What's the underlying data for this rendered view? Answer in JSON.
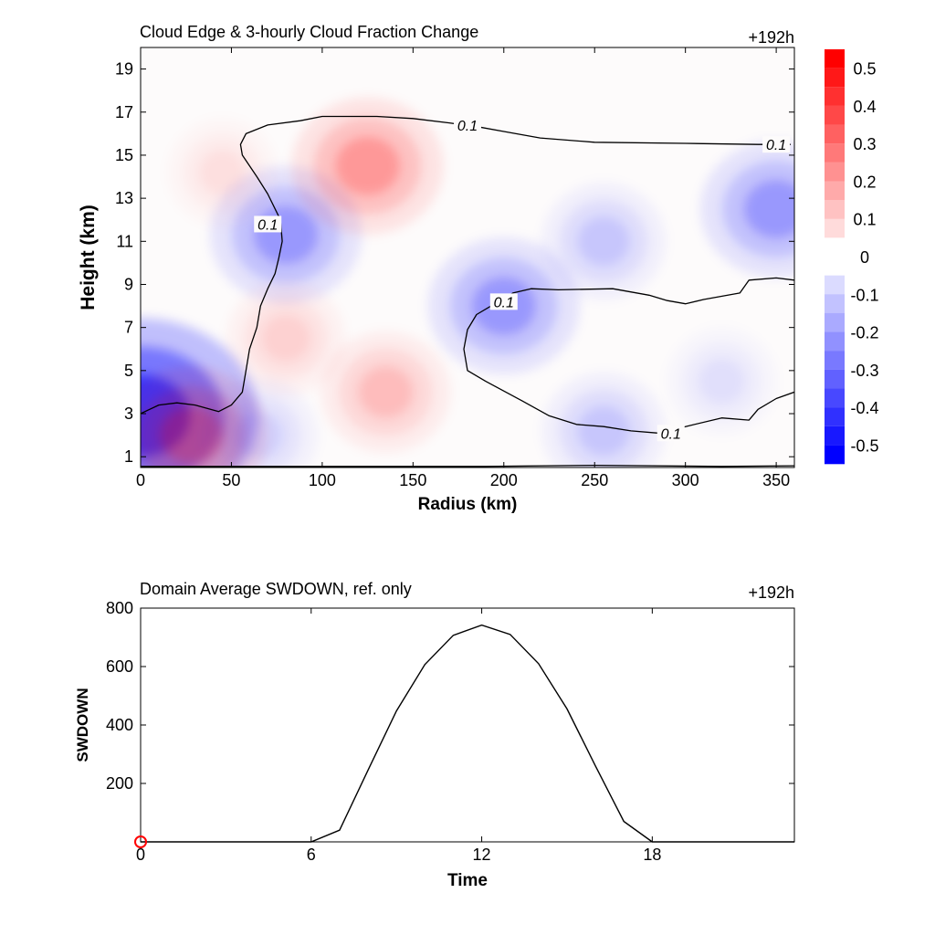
{
  "chart_data": [
    {
      "type": "heatmap",
      "title": "Cloud Edge & 3-hourly Cloud Fraction Change",
      "time_label": "+192h",
      "xlabel": "Radius (km)",
      "ylabel": "Height (km)",
      "xlim": [
        0,
        360
      ],
      "ylim": [
        0.5,
        20
      ],
      "xticks": [
        0,
        50,
        100,
        150,
        200,
        250,
        300,
        350
      ],
      "yticks": [
        1,
        3,
        5,
        7,
        9,
        11,
        13,
        15,
        17,
        19
      ],
      "colorbar": {
        "range": [
          -0.55,
          0.55
        ],
        "ticks": [
          0.5,
          0.4,
          0.3,
          0.2,
          0.1,
          0,
          -0.1,
          -0.2,
          -0.3,
          -0.4,
          -0.5
        ],
        "tick_labels": [
          "0.5",
          "0.4",
          "0.3",
          "0.2",
          "0.1",
          "0",
          "-0.1",
          "-0.2",
          "-0.3",
          "-0.4",
          "-0.5"
        ],
        "negative_color": "#0000ff",
        "positive_color": "#ff0000"
      },
      "fields": [
        {
          "r": 0,
          "z": 2.9,
          "value": -0.5
        },
        {
          "r": 28,
          "z": 2.0,
          "value": 0.2
        },
        {
          "r": 80,
          "z": 11.3,
          "value": -0.2
        },
        {
          "r": 125,
          "z": 14.5,
          "value": 0.2
        },
        {
          "r": 135,
          "z": 4.0,
          "value": 0.12
        },
        {
          "r": 80,
          "z": 6.5,
          "value": 0.08
        },
        {
          "r": 45,
          "z": 14.2,
          "value": 0.05
        },
        {
          "r": 200,
          "z": 8.0,
          "value": -0.2
        },
        {
          "r": 350,
          "z": 12.5,
          "value": -0.2
        },
        {
          "r": 255,
          "z": 2.2,
          "value": -0.1
        },
        {
          "r": 65,
          "z": 2.0,
          "value": -0.08
        },
        {
          "r": 320,
          "z": 4.5,
          "value": -0.05
        },
        {
          "r": 255,
          "z": 11.0,
          "value": -0.1
        }
      ],
      "contours": [
        {
          "label": "0.1",
          "label_positions": [
            [
              180,
              16.4
            ],
            [
              350,
              15.5
            ],
            [
              70,
              11.8
            ],
            [
              200,
              8.2
            ],
            [
              292,
              2.1
            ]
          ],
          "points": [
            [
              0,
              3.0
            ],
            [
              5,
              3.2
            ],
            [
              10,
              3.4
            ],
            [
              20,
              3.5
            ],
            [
              30,
              3.4
            ],
            [
              43,
              3.1
            ],
            [
              50,
              3.4
            ],
            [
              56,
              4.0
            ],
            [
              58,
              5.0
            ],
            [
              60,
              6.0
            ],
            [
              64,
              7.0
            ],
            [
              66,
              8.0
            ],
            [
              70,
              8.8
            ],
            [
              74,
              9.5
            ],
            [
              76,
              10.2
            ],
            [
              78,
              11.0
            ],
            [
              77,
              12.0
            ],
            [
              70,
              13.2
            ],
            [
              64,
              14.0
            ],
            [
              56,
              15.0
            ],
            [
              55,
              15.5
            ],
            [
              58,
              16.0
            ],
            [
              70,
              16.4
            ],
            [
              88,
              16.6
            ],
            [
              100,
              16.8
            ],
            [
              110,
              16.8
            ],
            [
              130,
              16.8
            ],
            [
              150,
              16.7
            ],
            [
              170,
              16.5
            ],
            [
              187,
              16.3
            ],
            [
              200,
              16.1
            ],
            [
              220,
              15.8
            ],
            [
              250,
              15.6
            ],
            [
              300,
              15.55
            ],
            [
              340,
              15.5
            ],
            [
              358,
              15.5
            ]
          ]
        },
        {
          "label": "0.1",
          "label_positions": [],
          "points": [
            [
              360,
              9.2
            ],
            [
              350,
              9.3
            ],
            [
              335,
              9.2
            ],
            [
              330,
              8.6
            ],
            [
              310,
              8.3
            ],
            [
              300,
              8.1
            ],
            [
              290,
              8.25
            ],
            [
              280,
              8.5
            ],
            [
              260,
              8.8
            ],
            [
              230,
              8.75
            ],
            [
              215,
              8.8
            ],
            [
              205,
              8.6
            ],
            [
              195,
              8.1
            ],
            [
              185,
              7.6
            ],
            [
              180,
              6.9
            ],
            [
              178,
              6.0
            ],
            [
              180,
              5.0
            ],
            [
              190,
              4.5
            ],
            [
              210,
              3.6
            ],
            [
              225,
              2.9
            ],
            [
              240,
              2.5
            ],
            [
              255,
              2.4
            ],
            [
              270,
              2.2
            ],
            [
              285,
              2.1
            ],
            [
              300,
              2.4
            ],
            [
              320,
              2.8
            ],
            [
              335,
              2.7
            ],
            [
              340,
              3.2
            ],
            [
              350,
              3.7
            ],
            [
              360,
              4.0
            ]
          ]
        },
        {
          "label": "0.1",
          "label_positions": [],
          "points": [
            [
              0,
              0.55
            ],
            [
              100,
              0.55
            ],
            [
              190,
              0.55
            ],
            [
              250,
              0.6
            ],
            [
              320,
              0.55
            ],
            [
              360,
              0.58
            ]
          ]
        }
      ]
    },
    {
      "type": "line",
      "title": "Domain Average SWDOWN, ref. only",
      "time_label": "+192h",
      "xlabel": "Time",
      "ylabel": "SWDOWN",
      "xlim": [
        0,
        23
      ],
      "ylim": [
        0,
        800
      ],
      "xticks": [
        0,
        6,
        12,
        18
      ],
      "yticks": [
        200,
        400,
        600,
        800
      ],
      "x": [
        0,
        1,
        2,
        3,
        4,
        5,
        6,
        7,
        8,
        9,
        10,
        11,
        12,
        13,
        14,
        15,
        16,
        17,
        18,
        19,
        20,
        21,
        22,
        23
      ],
      "values": [
        0,
        0,
        0,
        0,
        0,
        0,
        0,
        40,
        245,
        448,
        607,
        707,
        742,
        710,
        610,
        455,
        260,
        70,
        0,
        0,
        0,
        0,
        0,
        0
      ],
      "marker": {
        "x": 0,
        "y": 0,
        "color": "#ff0000"
      }
    }
  ]
}
